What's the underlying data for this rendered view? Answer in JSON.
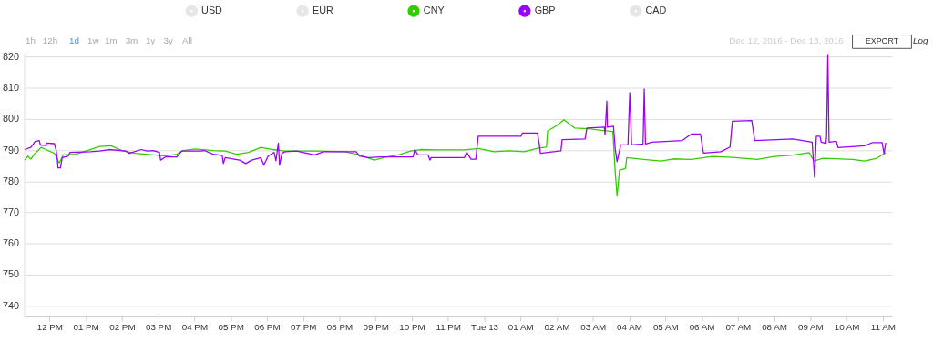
{
  "chart_data": {
    "type": "line",
    "annotations": [
      "1h",
      "12h",
      "1d",
      "1w",
      "1m",
      "3m",
      "1y",
      "3y",
      "All",
      "Dec 12, 2016 - Dec 13, 2016",
      "EXPORT",
      "Log"
    ],
    "xlim": [
      "2016-12-12T11:18",
      "2016-12-13T11:15"
    ],
    "xticks": [
      {
        "value": "2016-12-12T12:00",
        "label": "12 PM"
      },
      {
        "value": "2016-12-12T13:00",
        "label": "01 PM"
      },
      {
        "value": "2016-12-12T14:00",
        "label": "02 PM"
      },
      {
        "value": "2016-12-12T15:00",
        "label": "03 PM"
      },
      {
        "value": "2016-12-12T16:00",
        "label": "04 PM"
      },
      {
        "value": "2016-12-12T17:00",
        "label": "05 PM"
      },
      {
        "value": "2016-12-12T18:00",
        "label": "06 PM"
      },
      {
        "value": "2016-12-12T19:00",
        "label": "07 PM"
      },
      {
        "value": "2016-12-12T20:00",
        "label": "08 PM"
      },
      {
        "value": "2016-12-12T21:00",
        "label": "09 PM"
      },
      {
        "value": "2016-12-12T22:00",
        "label": "10 PM"
      },
      {
        "value": "2016-12-12T23:00",
        "label": "11 PM"
      },
      {
        "value": "2016-12-13T00:00",
        "label": "Tue 13"
      },
      {
        "value": "2016-12-13T01:00",
        "label": "01 AM"
      },
      {
        "value": "2016-12-13T02:00",
        "label": "02 AM"
      },
      {
        "value": "2016-12-13T03:00",
        "label": "03 AM"
      },
      {
        "value": "2016-12-13T04:00",
        "label": "04 AM"
      },
      {
        "value": "2016-12-13T05:00",
        "label": "05 AM"
      },
      {
        "value": "2016-12-13T06:00",
        "label": "06 AM"
      },
      {
        "value": "2016-12-13T07:00",
        "label": "07 AM"
      },
      {
        "value": "2016-12-13T08:00",
        "label": "08 AM"
      },
      {
        "value": "2016-12-13T09:00",
        "label": "09 AM"
      },
      {
        "value": "2016-12-13T10:00",
        "label": "10 AM"
      },
      {
        "value": "2016-12-13T11:00",
        "label": "11 AM"
      }
    ],
    "ylim": [
      736.5,
      821
    ],
    "yticks": [
      740,
      750,
      760,
      770,
      780,
      790,
      800,
      810,
      820
    ],
    "grid": "y",
    "legend": "top",
    "marker": "none",
    "line_style": "solid",
    "series": [
      {
        "name": "USD",
        "color": "#e6e6e6"
      },
      {
        "name": "EUR",
        "color": "#e6e6e6"
      },
      {
        "name": "CNY",
        "color": "#33cc00",
        "x": [
          "2016-12-12T11:19",
          "2016-12-12T11:24",
          "2016-12-12T11:29",
          "2016-12-12T11:34",
          "2016-12-12T11:46",
          "2016-12-12T11:54",
          "2016-12-12T12:08",
          "2016-12-12T12:16",
          "2016-12-12T12:23",
          "2016-12-12T12:43",
          "2016-12-12T13:03",
          "2016-12-12T13:23",
          "2016-12-12T13:42",
          "2016-12-12T14:02",
          "2016-12-12T14:22",
          "2016-12-12T14:52",
          "2016-12-12T15:12",
          "2016-12-12T15:31",
          "2016-12-12T15:41",
          "2016-12-12T16:01",
          "2016-12-12T16:31",
          "2016-12-12T16:51",
          "2016-12-12T17:10",
          "2016-12-12T17:30",
          "2016-12-12T17:50",
          "2016-12-12T18:10",
          "2016-12-12T18:30",
          "2016-12-12T19:19",
          "2016-12-12T20:09",
          "2016-12-12T20:33",
          "2016-12-12T20:58",
          "2016-12-12T21:18",
          "2016-12-12T21:38",
          "2016-12-12T21:58",
          "2016-12-12T22:17",
          "2016-12-12T22:37",
          "2016-12-12T23:27",
          "2016-12-12T23:51",
          "2016-12-13T00:16",
          "2016-12-13T00:41",
          "2016-12-13T01:06",
          "2016-12-13T01:30",
          "2016-12-13T01:43",
          "2016-12-13T01:45",
          "2016-12-13T02:00",
          "2016-12-13T02:12",
          "2016-12-13T02:30",
          "2016-12-13T02:54",
          "2016-12-13T03:14",
          "2016-12-13T03:33",
          "2016-12-13T03:37",
          "2016-12-13T03:40",
          "2016-12-13T03:44",
          "2016-12-13T03:54",
          "2016-12-13T03:56",
          "2016-12-13T04:24",
          "2016-12-13T04:53",
          "2016-12-13T05:13",
          "2016-12-13T05:43",
          "2016-12-13T06:18",
          "2016-12-13T06:52",
          "2016-12-13T07:32",
          "2016-12-13T08:01",
          "2016-12-13T08:31",
          "2016-12-13T08:58",
          "2016-12-13T09:06",
          "2016-12-13T09:21",
          "2016-12-13T10:10",
          "2016-12-13T10:30",
          "2016-12-13T10:50",
          "2016-12-13T11:05"
        ],
        "values": [
          786.8,
          788.1,
          787.1,
          788.5,
          790.9,
          790.2,
          789.0,
          785.9,
          788.5,
          788.7,
          789.9,
          791.2,
          791.4,
          789.7,
          789.0,
          788.5,
          788.1,
          788.7,
          789.9,
          790.4,
          789.9,
          789.7,
          788.7,
          789.3,
          790.9,
          790.2,
          789.7,
          789.7,
          789.5,
          788.5,
          786.8,
          787.8,
          788.5,
          789.7,
          790.2,
          790.1,
          790.1,
          790.5,
          789.5,
          789.8,
          789.5,
          790.7,
          791.0,
          796.2,
          797.9,
          799.8,
          797.1,
          796.9,
          796.4,
          796.0,
          782.7,
          775.2,
          783.6,
          784.1,
          787.6,
          787.0,
          786.5,
          787.2,
          787.0,
          788.0,
          787.7,
          787.0,
          788.0,
          788.4,
          789.2,
          786.5,
          787.4,
          787.0,
          786.5,
          787.4,
          789.2
        ]
      },
      {
        "name": "GBP",
        "color": "#9900ff",
        "x": [
          "2016-12-12T11:19",
          "2016-12-12T11:29",
          "2016-12-12T11:36",
          "2016-12-12T11:43",
          "2016-12-12T11:45",
          "2016-12-12T11:54",
          "2016-12-12T11:55",
          "2016-12-12T12:08",
          "2016-12-12T12:11",
          "2016-12-12T12:13",
          "2016-12-12T12:14",
          "2016-12-12T12:18",
          "2016-12-12T12:21",
          "2016-12-12T12:31",
          "2016-12-12T12:34",
          "2016-12-12T13:08",
          "2016-12-12T13:23",
          "2016-12-12T13:38",
          "2016-12-12T14:07",
          "2016-12-12T14:12",
          "2016-12-12T14:32",
          "2016-12-12T14:42",
          "2016-12-12T14:52",
          "2016-12-12T15:02",
          "2016-12-12T15:04",
          "2016-12-12T15:12",
          "2016-12-12T15:31",
          "2016-12-12T15:39",
          "2016-12-12T16:11",
          "2016-12-12T16:16",
          "2016-12-12T16:31",
          "2016-12-12T16:46",
          "2016-12-12T16:48",
          "2016-12-12T16:51",
          "2016-12-12T17:15",
          "2016-12-12T17:25",
          "2016-12-12T17:35",
          "2016-12-12T17:50",
          "2016-12-12T17:55",
          "2016-12-12T18:02",
          "2016-12-12T18:12",
          "2016-12-12T18:15",
          "2016-12-12T18:19",
          "2016-12-12T18:21",
          "2016-12-12T18:25",
          "2016-12-12T18:30",
          "2016-12-12T18:49",
          "2016-12-12T19:19",
          "2016-12-12T19:34",
          "2016-12-12T20:28",
          "2016-12-12T20:33",
          "2016-12-12T20:48",
          "2016-12-12T21:08",
          "2016-12-12T22:02",
          "2016-12-12T22:05",
          "2016-12-12T22:10",
          "2016-12-12T22:27",
          "2016-12-12T22:30",
          "2016-12-12T22:32",
          "2016-12-12T22:37",
          "2016-12-12T23:27",
          "2016-12-12T23:31",
          "2016-12-12T23:38",
          "2016-12-12T23:46",
          "2016-12-12T23:50",
          "2016-12-13T01:01",
          "2016-12-13T01:03",
          "2016-12-13T01:28",
          "2016-12-13T01:31",
          "2016-12-13T01:33",
          "2016-12-13T02:07",
          "2016-12-13T02:09",
          "2016-12-13T02:47",
          "2016-12-13T02:50",
          "2016-12-13T03:19",
          "2016-12-13T03:20",
          "2016-12-13T03:23",
          "2016-12-13T03:24",
          "2016-12-13T03:34",
          "2016-12-13T03:37",
          "2016-12-13T03:40",
          "2016-12-13T03:46",
          "2016-12-13T03:58",
          "2016-12-13T04:01",
          "2016-12-13T04:04",
          "2016-12-13T04:23",
          "2016-12-13T04:25",
          "2016-12-13T04:27",
          "2016-12-13T04:38",
          "2016-12-13T05:28",
          "2016-12-13T05:43",
          "2016-12-13T05:58",
          "2016-12-13T06:03",
          "2016-12-13T06:32",
          "2016-12-13T06:47",
          "2016-12-13T06:51",
          "2016-12-13T07:23",
          "2016-12-13T07:28",
          "2016-12-13T08:31",
          "2016-12-13T09:03",
          "2016-12-13T09:07",
          "2016-12-13T09:10",
          "2016-12-13T09:16",
          "2016-12-13T09:18",
          "2016-12-13T09:26",
          "2016-12-13T09:27",
          "2016-12-13T09:29",
          "2016-12-13T09:31",
          "2016-12-13T09:43",
          "2016-12-13T09:46",
          "2016-12-13T10:30",
          "2016-12-13T10:42",
          "2016-12-13T10:59",
          "2016-12-13T11:02",
          "2016-12-13T11:05"
        ],
        "values": [
          790.2,
          790.9,
          792.8,
          793.1,
          791.6,
          791.5,
          792.3,
          792.1,
          789.9,
          787.1,
          784.3,
          784.3,
          787.6,
          788.1,
          789.3,
          789.5,
          789.7,
          790.2,
          789.7,
          789.0,
          790.2,
          789.7,
          789.9,
          789.3,
          786.8,
          787.8,
          787.8,
          789.7,
          789.7,
          789.9,
          788.7,
          788.3,
          785.7,
          787.6,
          786.8,
          785.7,
          786.8,
          787.6,
          785.2,
          788.1,
          789.3,
          786.6,
          792.3,
          785.2,
          789.0,
          789.5,
          789.7,
          788.5,
          789.5,
          789.5,
          788.1,
          787.6,
          787.8,
          787.8,
          790.2,
          788.5,
          788.5,
          786.8,
          787.6,
          787.6,
          787.6,
          789.3,
          787.1,
          787.1,
          794.5,
          794.5,
          795.5,
          795.5,
          792.2,
          789.0,
          789.8,
          793.4,
          793.6,
          797.1,
          797.4,
          795.0,
          805.8,
          797.4,
          797.7,
          790.3,
          786.3,
          791.7,
          791.7,
          808.5,
          791.7,
          792.0,
          809.7,
          792.0,
          792.6,
          793.1,
          795.2,
          795.2,
          789.1,
          789.5,
          791.0,
          799.3,
          799.5,
          793.1,
          793.6,
          792.6,
          781.3,
          794.5,
          794.5,
          792.6,
          792.2,
          794.5,
          820.8,
          792.6,
          792.9,
          790.8,
          791.4,
          792.4,
          792.4,
          788.9,
          792.4
        ]
      },
      {
        "name": "CAD",
        "color": "#e6e6e6"
      }
    ]
  }
}
